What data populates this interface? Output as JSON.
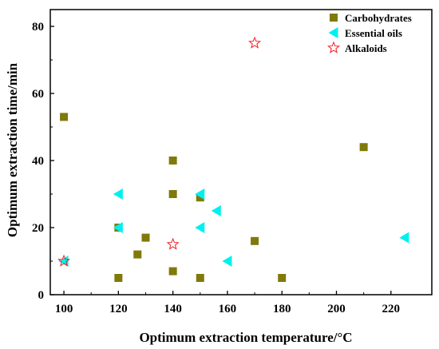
{
  "chart_data": {
    "type": "scatter",
    "xlabel": "Optimum extraction temperature/°C",
    "ylabel": "Optimum extraction time/min",
    "xlim": [
      95,
      235
    ],
    "ylim": [
      0,
      85
    ],
    "xticks": [
      100,
      120,
      140,
      160,
      180,
      200,
      220
    ],
    "yticks": [
      0,
      20,
      40,
      60,
      80
    ],
    "legend_position": "top-right",
    "grid": false,
    "series": [
      {
        "name": "Carbohydrates",
        "marker": "square",
        "color": "#7f7a0a",
        "points": [
          [
            100,
            53
          ],
          [
            120,
            5
          ],
          [
            120,
            20
          ],
          [
            127,
            12
          ],
          [
            130,
            17
          ],
          [
            140,
            40
          ],
          [
            140,
            30
          ],
          [
            140,
            7
          ],
          [
            150,
            5
          ],
          [
            150,
            29
          ],
          [
            170,
            16
          ],
          [
            180,
            5
          ],
          [
            210,
            44
          ]
        ]
      },
      {
        "name": "Essential oils",
        "marker": "triangle-left",
        "color": "#00f0f0",
        "points": [
          [
            100,
            10
          ],
          [
            120,
            30
          ],
          [
            120,
            20
          ],
          [
            150,
            30
          ],
          [
            150,
            20
          ],
          [
            156,
            25
          ],
          [
            160,
            10
          ],
          [
            225,
            17
          ]
        ]
      },
      {
        "name": "Alkaloids",
        "marker": "star",
        "color": "#ee1c24",
        "points": [
          [
            100,
            10
          ],
          [
            140,
            15
          ],
          [
            170,
            75
          ]
        ]
      }
    ]
  }
}
